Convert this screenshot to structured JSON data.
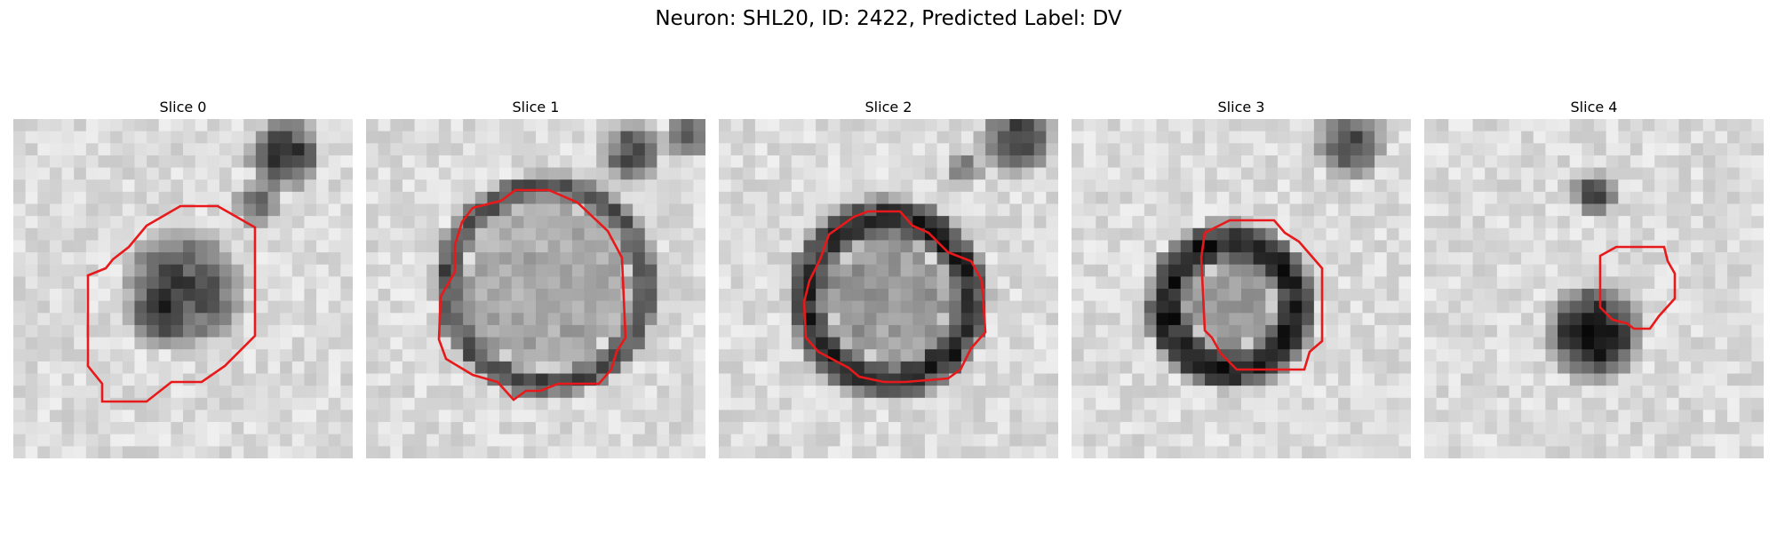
{
  "figure": {
    "title": "Neuron: SHL20, ID: 2422, Predicted Label: DV",
    "contour_color": "#e8191a",
    "colormap": "grayscale"
  },
  "slices": [
    {
      "title": "Slice 0"
    },
    {
      "title": "Slice 1"
    },
    {
      "title": "Slice 2"
    },
    {
      "title": "Slice 3"
    },
    {
      "title": "Slice 4"
    }
  ]
}
